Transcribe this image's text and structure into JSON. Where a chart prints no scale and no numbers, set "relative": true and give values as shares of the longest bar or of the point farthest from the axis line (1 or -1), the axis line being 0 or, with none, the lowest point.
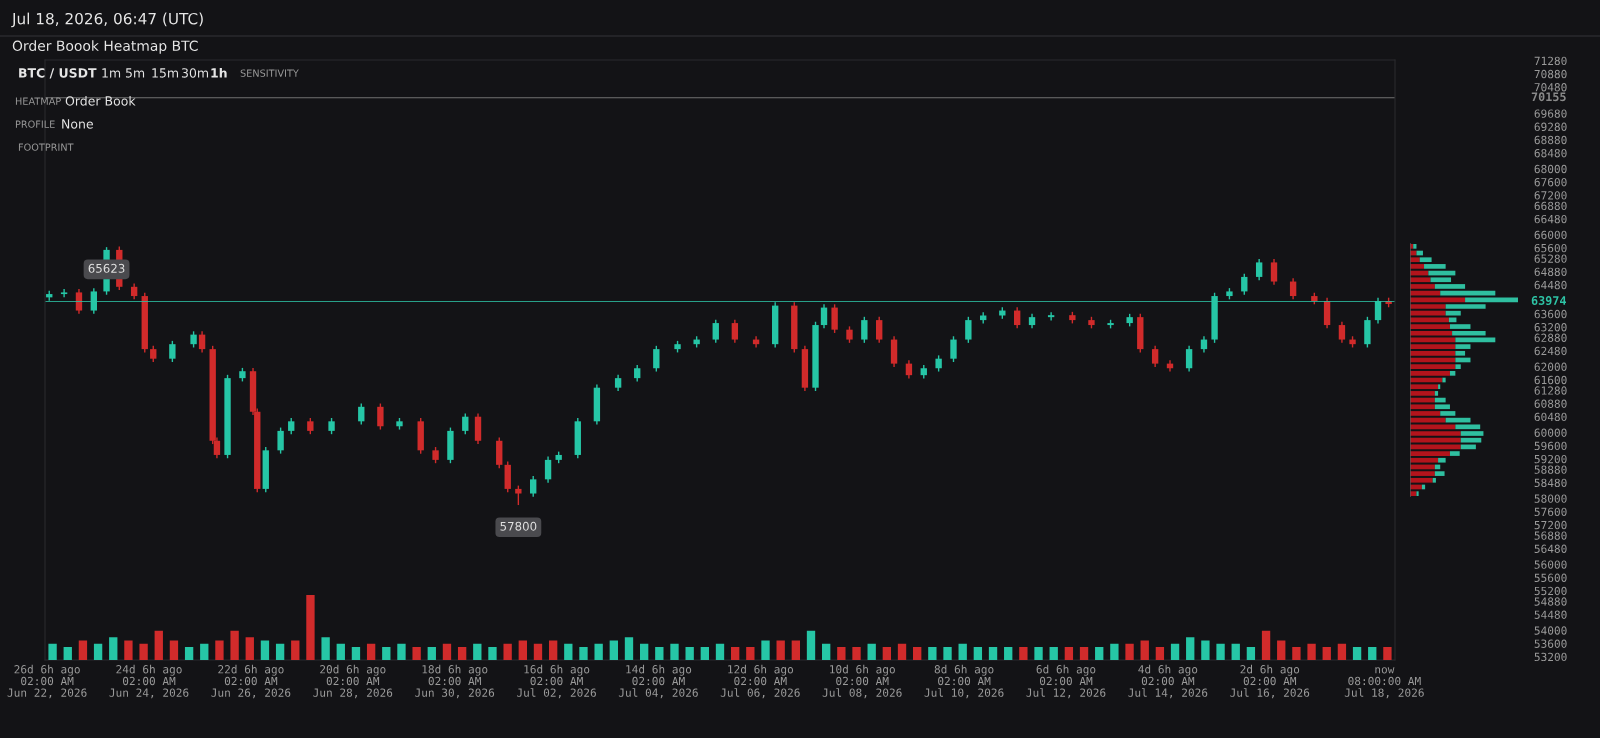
{
  "chart_data": [
    {
      "type": "candlestick",
      "title": "Order Boook Heatmap BTC",
      "subtitle": "Jul 18, 2026, 06:47 (UTC)",
      "x": [
        "2026-06-22T03:00",
        "2026-06-22T10:00",
        "2026-06-22T17:00",
        "2026-06-23T00:00",
        "2026-06-23T06:00",
        "2026-06-23T12:00",
        "2026-06-23T19:00",
        "2026-06-24T00:00",
        "2026-06-24T04:00",
        "2026-06-24T13:00",
        "2026-06-24T23:00",
        "2026-06-25T03:00",
        "2026-06-25T08:00",
        "2026-06-25T10:00",
        "2026-06-25T15:00",
        "2026-06-25T22:00",
        "2026-06-26T03:00",
        "2026-06-26T05:00",
        "2026-06-26T09:00",
        "2026-06-26T16:00",
        "2026-06-26T21:00",
        "2026-06-27T06:00",
        "2026-06-27T16:00",
        "2026-06-28T06:00",
        "2026-06-28T15:00",
        "2026-06-29T00:00",
        "2026-06-29T10:00",
        "2026-06-29T17:00",
        "2026-06-30T00:00",
        "2026-06-30T07:00",
        "2026-06-30T13:00",
        "2026-06-30T23:00",
        "2026-07-01T03:00",
        "2026-07-01T08:00",
        "2026-07-01T15:00",
        "2026-07-01T22:00",
        "2026-07-02T03:00",
        "2026-07-02T12:00",
        "2026-07-02T21:00",
        "2026-07-03T07:00",
        "2026-07-03T16:00",
        "2026-07-04T01:00",
        "2026-07-04T11:00",
        "2026-07-04T20:00",
        "2026-07-05T05:00",
        "2026-07-05T14:00",
        "2026-07-06T00:00",
        "2026-07-06T09:00",
        "2026-07-06T18:00",
        "2026-07-06T23:00",
        "2026-07-07T04:00",
        "2026-07-07T08:00",
        "2026-07-07T13:00",
        "2026-07-07T20:00",
        "2026-07-08T03:00",
        "2026-07-08T10:00",
        "2026-07-08T17:00",
        "2026-07-09T00:00",
        "2026-07-09T07:00",
        "2026-07-09T14:00",
        "2026-07-09T21:00",
        "2026-07-10T04:00",
        "2026-07-10T11:00",
        "2026-07-10T20:00",
        "2026-07-11T03:00",
        "2026-07-11T10:00",
        "2026-07-11T19:00",
        "2026-07-12T05:00",
        "2026-07-12T14:00",
        "2026-07-12T23:00",
        "2026-07-13T08:00",
        "2026-07-13T13:00",
        "2026-07-13T20:00",
        "2026-07-14T03:00",
        "2026-07-14T12:00",
        "2026-07-14T19:00",
        "2026-07-15T00:00",
        "2026-07-15T07:00",
        "2026-07-15T14:00",
        "2026-07-15T21:00",
        "2026-07-16T04:00",
        "2026-07-16T13:00",
        "2026-07-16T23:00",
        "2026-07-17T05:00",
        "2026-07-17T12:00",
        "2026-07-17T17:00",
        "2026-07-18T00:00",
        "2026-07-18T05:00",
        "2026-07-18T10:00"
      ],
      "ohlc": [
        [
          64100,
          64300,
          64000,
          64200
        ],
        [
          64200,
          64350,
          64100,
          64250
        ],
        [
          64250,
          64350,
          63600,
          63700
        ],
        [
          63700,
          64380,
          63600,
          64280
        ],
        [
          64280,
          65623,
          64180,
          65540
        ],
        [
          65540,
          65640,
          64320,
          64420
        ],
        [
          64420,
          64520,
          64040,
          64140
        ],
        [
          64140,
          64240,
          62430,
          62530
        ],
        [
          62530,
          62630,
          62140,
          62240
        ],
        [
          62240,
          62780,
          62140,
          62680
        ],
        [
          62680,
          63070,
          62580,
          62970
        ],
        [
          62970,
          63070,
          62430,
          62530
        ],
        [
          62530,
          62630,
          59650,
          59750
        ],
        [
          59750,
          59850,
          59220,
          59320
        ],
        [
          59320,
          61750,
          59220,
          61650
        ],
        [
          61650,
          61960,
          61550,
          61860
        ],
        [
          61860,
          61960,
          60530,
          60630
        ],
        [
          60630,
          60730,
          58190,
          58290
        ],
        [
          58290,
          59560,
          58190,
          59460
        ],
        [
          59460,
          60150,
          59360,
          60050
        ],
        [
          60050,
          60440,
          59950,
          60340
        ],
        [
          60340,
          60440,
          59950,
          60050
        ],
        [
          60050,
          60440,
          59950,
          60340
        ],
        [
          60340,
          60880,
          60240,
          60780
        ],
        [
          60780,
          60880,
          60090,
          60190
        ],
        [
          60190,
          60440,
          60090,
          60340
        ],
        [
          60340,
          60440,
          59360,
          59460
        ],
        [
          59460,
          59560,
          59070,
          59170
        ],
        [
          59170,
          60150,
          59070,
          60050
        ],
        [
          60050,
          60580,
          59950,
          60480
        ],
        [
          60480,
          60580,
          59650,
          59750
        ],
        [
          59750,
          59850,
          58920,
          59020
        ],
        [
          59020,
          59120,
          58190,
          58290
        ],
        [
          58290,
          58390,
          57800,
          58150
        ],
        [
          58150,
          58680,
          58050,
          58580
        ],
        [
          58580,
          59270,
          58480,
          59170
        ],
        [
          59170,
          59420,
          59070,
          59320
        ],
        [
          59320,
          60440,
          59220,
          60340
        ],
        [
          60340,
          61460,
          60240,
          61360
        ],
        [
          61360,
          61750,
          61260,
          61650
        ],
        [
          61650,
          62050,
          61550,
          61950
        ],
        [
          61950,
          62630,
          61850,
          62530
        ],
        [
          62530,
          62780,
          62430,
          62680
        ],
        [
          62680,
          62920,
          62580,
          62820
        ],
        [
          62820,
          63420,
          62720,
          63320
        ],
        [
          63320,
          63420,
          62720,
          62820
        ],
        [
          62820,
          62920,
          62580,
          62680
        ],
        [
          62680,
          63950,
          62580,
          63850
        ],
        [
          63850,
          63950,
          62430,
          62530
        ],
        [
          62530,
          62630,
          61260,
          61360
        ],
        [
          61360,
          63360,
          61260,
          63260
        ],
        [
          63260,
          63890,
          63160,
          63790
        ],
        [
          63790,
          63890,
          63020,
          63120
        ],
        [
          63120,
          63220,
          62720,
          62820
        ],
        [
          62820,
          63510,
          62720,
          63410
        ],
        [
          63410,
          63510,
          62720,
          62820
        ],
        [
          62820,
          62920,
          61990,
          62090
        ],
        [
          62090,
          62190,
          61640,
          61740
        ],
        [
          61740,
          62050,
          61640,
          61950
        ],
        [
          61950,
          62340,
          61850,
          62240
        ],
        [
          62240,
          62920,
          62140,
          62820
        ],
        [
          62820,
          63510,
          62720,
          63410
        ],
        [
          63410,
          63650,
          63310,
          63550
        ],
        [
          63550,
          63800,
          63450,
          63700
        ],
        [
          63700,
          63800,
          63160,
          63260
        ],
        [
          63260,
          63600,
          63160,
          63500
        ],
        [
          63500,
          63650,
          63400,
          63560
        ],
        [
          63560,
          63660,
          63310,
          63410
        ],
        [
          63410,
          63510,
          63160,
          63260
        ],
        [
          63260,
          63420,
          63160,
          63320
        ],
        [
          63320,
          63600,
          63220,
          63500
        ],
        [
          63500,
          63600,
          62430,
          62530
        ],
        [
          62530,
          62630,
          61990,
          62090
        ],
        [
          62090,
          62190,
          61850,
          61950
        ],
        [
          61950,
          62630,
          61850,
          62530
        ],
        [
          62530,
          62920,
          62430,
          62820
        ],
        [
          62820,
          64240,
          62720,
          64140
        ],
        [
          64140,
          64380,
          64040,
          64280
        ],
        [
          64280,
          64820,
          64180,
          64720
        ],
        [
          64720,
          65260,
          64620,
          65160
        ],
        [
          65160,
          65260,
          64480,
          64580
        ],
        [
          64580,
          64680,
          64040,
          64140
        ],
        [
          64140,
          64240,
          63890,
          63990
        ],
        [
          63990,
          64090,
          63160,
          63260
        ],
        [
          63260,
          63360,
          62720,
          62820
        ],
        [
          62820,
          62920,
          62580,
          62680
        ],
        [
          62680,
          63510,
          62580,
          63410
        ],
        [
          63410,
          64090,
          63310,
          63990
        ],
        [
          63990,
          64090,
          63800,
          63900
        ]
      ],
      "xlim": [
        "2026-06-22T01:00",
        "2026-07-18T13:00"
      ],
      "ylim": [
        53100,
        71300
      ],
      "xticks": [
        {
          "value": "2026-06-22T02:00",
          "label": "26d 6h ago\n02:00 AM\nJun 22, 2026"
        },
        {
          "value": "2026-06-24T02:00",
          "label": "24d 6h ago\n02:00 AM\nJun 24, 2026"
        },
        {
          "value": "2026-06-26T02:00",
          "label": "22d 6h ago\n02:00 AM\nJun 26, 2026"
        },
        {
          "value": "2026-06-28T02:00",
          "label": "20d 6h ago\n02:00 AM\nJun 28, 2026"
        },
        {
          "value": "2026-06-30T02:00",
          "label": "18d 6h ago\n02:00 AM\nJun 30, 2026"
        },
        {
          "value": "2026-07-02T02:00",
          "label": "16d 6h ago\n02:00 AM\nJul 02, 2026"
        },
        {
          "value": "2026-07-04T02:00",
          "label": "14d 6h ago\n02:00 AM\nJul 04, 2026"
        },
        {
          "value": "2026-07-06T02:00",
          "label": "12d 6h ago\n02:00 AM\nJul 06, 2026"
        },
        {
          "value": "2026-07-08T02:00",
          "label": "10d 6h ago\n02:00 AM\nJul 08, 2026"
        },
        {
          "value": "2026-07-10T02:00",
          "label": "8d 6h ago\n02:00 AM\nJul 10, 2026"
        },
        {
          "value": "2026-07-12T02:00",
          "label": "6d 6h ago\n02:00 AM\nJul 12, 2026"
        },
        {
          "value": "2026-07-14T02:00",
          "label": "4d 6h ago\n02:00 AM\nJul 14, 2026"
        },
        {
          "value": "2026-07-16T02:00",
          "label": "2d 6h ago\n02:00 AM\nJul 16, 2026"
        },
        {
          "value": "2026-07-18T08:00",
          "label": "now\n08:00:00 AM\nJul 18, 2026"
        }
      ],
      "yticks": [
        53200,
        53600,
        54000,
        54480,
        54880,
        55200,
        55600,
        56000,
        56480,
        56880,
        57200,
        57600,
        58000,
        58480,
        58880,
        59200,
        59600,
        60000,
        60480,
        60880,
        61280,
        61600,
        62000,
        62480,
        62880,
        63200,
        63600,
        64480,
        64880,
        65280,
        65600,
        66000,
        66480,
        66880,
        67200,
        67600,
        68000,
        68480,
        68880,
        69280,
        69680,
        70480,
        70880,
        71280
      ],
      "ref_lines": [
        {
          "axis": "y",
          "value": 70155,
          "label": "70155",
          "color": "#8a8a8a"
        },
        {
          "axis": "y",
          "value": 63974,
          "label": "63974",
          "color": "#2ec4a6"
        }
      ],
      "annotations": [
        {
          "text": "65623",
          "x": "2026-06-23T06:00",
          "y": 65623
        },
        {
          "text": "57800",
          "x": "2026-07-01T08:00",
          "y": 57800
        },
        "BTC / USDT",
        "1m",
        "5m",
        "15m",
        "30m",
        "1h",
        "SENSITIVITY",
        "HEATMAP",
        "Order Book",
        "PROFILE",
        "None",
        "FOOTPRINT"
      ]
    },
    {
      "type": "bar",
      "relative": true,
      "tick_labels": false,
      "categories": [
        null,
        null,
        null,
        null,
        null,
        null,
        null,
        null,
        null,
        null,
        null,
        null,
        null,
        null,
        null,
        null,
        null,
        null,
        null,
        null,
        null,
        null,
        null,
        null,
        null,
        null,
        null,
        null,
        null,
        null,
        null,
        null,
        null,
        null,
        null,
        null,
        null,
        null,
        null,
        null,
        null,
        null,
        null,
        null,
        null,
        null,
        null,
        null,
        null,
        null,
        null,
        null,
        null,
        null,
        null,
        null,
        null,
        null,
        null,
        null,
        null,
        null,
        null,
        null,
        null,
        null,
        null,
        null,
        null,
        null,
        null,
        null,
        null,
        null,
        null,
        null,
        null,
        null,
        null,
        null,
        null,
        null,
        null,
        null,
        null,
        null,
        null,
        null,
        null
      ],
      "values": [
        0.25,
        0.2,
        0.3,
        0.25,
        0.35,
        0.3,
        0.25,
        0.45,
        0.3,
        0.2,
        0.25,
        0.3,
        0.45,
        0.35,
        0.3,
        0.25,
        0.3,
        1.0,
        0.35,
        0.25,
        0.2,
        0.25,
        0.2,
        0.25,
        0.2,
        0.2,
        0.25,
        0.2,
        0.25,
        0.2,
        0.25,
        0.3,
        0.25,
        0.3,
        0.25,
        0.2,
        0.25,
        0.3,
        0.35,
        0.25,
        0.2,
        0.25,
        0.2,
        0.2,
        0.25,
        0.2,
        0.2,
        0.3,
        0.3,
        0.3,
        0.45,
        0.25,
        0.2,
        0.2,
        0.25,
        0.2,
        0.25,
        0.2,
        0.2,
        0.2,
        0.25,
        0.2,
        0.2,
        0.2,
        0.2,
        0.2,
        0.2,
        0.2,
        0.2,
        0.2,
        0.25,
        0.25,
        0.3,
        0.2,
        0.25,
        0.35,
        0.3,
        0.25,
        0.25,
        0.2,
        0.45,
        0.3,
        0.2,
        0.25,
        0.2,
        0.25,
        0.2,
        0.2,
        0.2
      ],
      "colors": [
        "#26c6a6",
        "#26c6a6",
        "#d12b2b",
        "#26c6a6",
        "#26c6a6",
        "#d12b2b",
        "#d12b2b",
        "#d12b2b",
        "#d12b2b",
        "#26c6a6",
        "#26c6a6",
        "#d12b2b",
        "#d12b2b",
        "#d12b2b",
        "#26c6a6",
        "#26c6a6",
        "#d12b2b",
        "#d12b2b",
        "#26c6a6",
        "#26c6a6",
        "#26c6a6",
        "#d12b2b",
        "#26c6a6",
        "#26c6a6",
        "#d12b2b",
        "#26c6a6",
        "#d12b2b",
        "#d12b2b",
        "#26c6a6",
        "#26c6a6",
        "#d12b2b",
        "#d12b2b",
        "#d12b2b",
        "#d12b2b",
        "#26c6a6",
        "#26c6a6",
        "#26c6a6",
        "#26c6a6",
        "#26c6a6",
        "#26c6a6",
        "#26c6a6",
        "#26c6a6",
        "#26c6a6",
        "#26c6a6",
        "#26c6a6",
        "#d12b2b",
        "#d12b2b",
        "#26c6a6",
        "#d12b2b",
        "#d12b2b",
        "#26c6a6",
        "#26c6a6",
        "#d12b2b",
        "#d12b2b",
        "#26c6a6",
        "#d12b2b",
        "#d12b2b",
        "#d12b2b",
        "#26c6a6",
        "#26c6a6",
        "#26c6a6",
        "#26c6a6",
        "#26c6a6",
        "#26c6a6",
        "#d12b2b",
        "#26c6a6",
        "#26c6a6",
        "#d12b2b",
        "#d12b2b",
        "#26c6a6",
        "#26c6a6",
        "#d12b2b",
        "#d12b2b",
        "#d12b2b",
        "#26c6a6",
        "#26c6a6",
        "#26c6a6",
        "#26c6a6",
        "#26c6a6",
        "#26c6a6",
        "#d12b2b",
        "#d12b2b",
        "#d12b2b",
        "#d12b2b",
        "#d12b2b",
        "#d12b2b",
        "#26c6a6",
        "#26c6a6",
        "#d12b2b"
      ]
    },
    {
      "type": "bar",
      "orientation": "horizontal",
      "stacked": true,
      "relative": true,
      "tick_labels": false,
      "categories": [
        null,
        null,
        null,
        null,
        null,
        null,
        null,
        null,
        null,
        null,
        null,
        null,
        null,
        null,
        null,
        null,
        null,
        null,
        null,
        null,
        null,
        null,
        null,
        null,
        null,
        null,
        null,
        null,
        null,
        null,
        null,
        null,
        null,
        null,
        null,
        null,
        null,
        null
      ],
      "series": [
        {
          "color": "#b3141c",
          "values": [
            0.03,
            0.06,
            0.09,
            0.13,
            0.17,
            0.19,
            0.23,
            0.28,
            0.51,
            0.33,
            0.33,
            0.36,
            0.37,
            0.39,
            0.42,
            0.42,
            0.42,
            0.42,
            0.42,
            0.37,
            0.3,
            0.26,
            0.23,
            0.23,
            0.23,
            0.28,
            0.33,
            0.42,
            0.47,
            0.47,
            0.47,
            0.37,
            0.26,
            0.23,
            0.23,
            0.21,
            0.11,
            0.06
          ]
        },
        {
          "color": "#2fbfa0",
          "values": [
            0.03,
            0.06,
            0.11,
            0.2,
            0.25,
            0.19,
            0.28,
            0.51,
            0.49,
            0.37,
            0.14,
            0.07,
            0.19,
            0.31,
            0.37,
            0.14,
            0.09,
            0.14,
            0.05,
            0.05,
            0.03,
            0.02,
            0.03,
            0.1,
            0.14,
            0.14,
            0.23,
            0.23,
            0.21,
            0.19,
            0.14,
            0.09,
            0.07,
            0.05,
            0.09,
            0.03,
            0.03,
            0.02
          ]
        }
      ]
    }
  ]
}
